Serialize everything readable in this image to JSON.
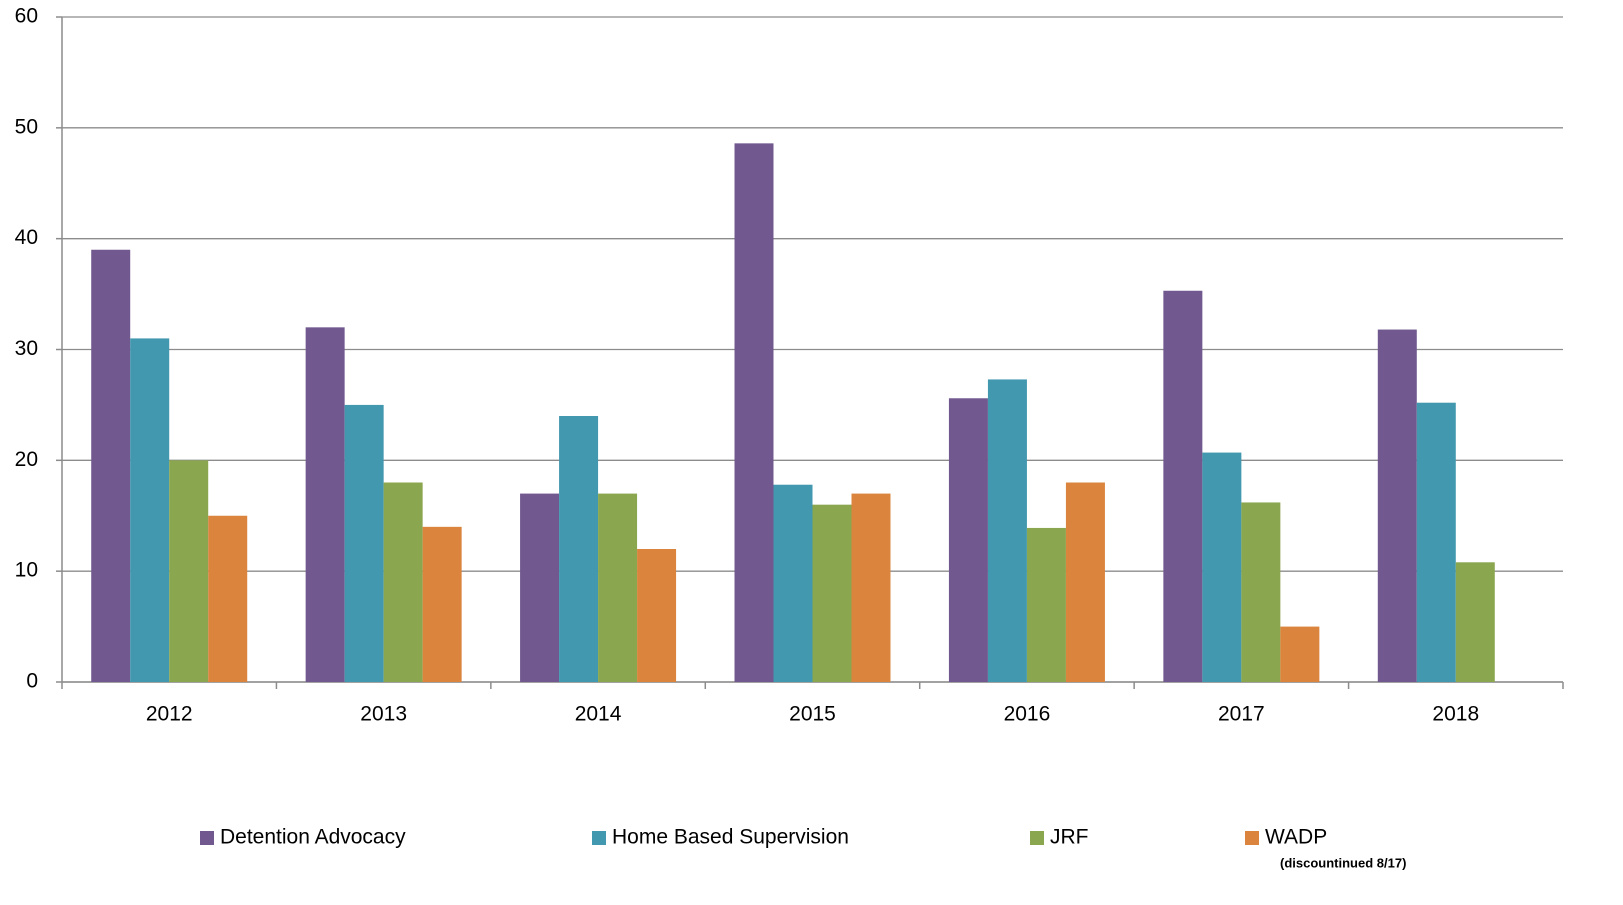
{
  "chart_data": {
    "type": "bar",
    "categories": [
      "2012",
      "2013",
      "2014",
      "2015",
      "2016",
      "2017",
      "2018"
    ],
    "series": [
      {
        "name": "Detention Advocacy",
        "color": "#71588f",
        "values": [
          39,
          32,
          17,
          48.6,
          25.6,
          35.3,
          31.8
        ]
      },
      {
        "name": "Home Based Supervision",
        "color": "#4198af",
        "values": [
          31,
          25,
          24,
          17.8,
          27.3,
          20.7,
          25.2
        ]
      },
      {
        "name": "JRF",
        "color": "#8aa64e",
        "values": [
          20,
          18,
          17,
          16,
          13.9,
          16.2,
          10.8
        ]
      },
      {
        "name": "WADP",
        "color": "#db843d",
        "values": [
          15,
          14,
          12,
          17,
          18,
          5,
          null
        ]
      }
    ],
    "annotation": "(discountinued 8/17)",
    "ylim": [
      0,
      60
    ],
    "yticks": [
      0,
      10,
      20,
      30,
      40,
      50,
      60
    ],
    "grid": true,
    "legend": "bottom"
  }
}
